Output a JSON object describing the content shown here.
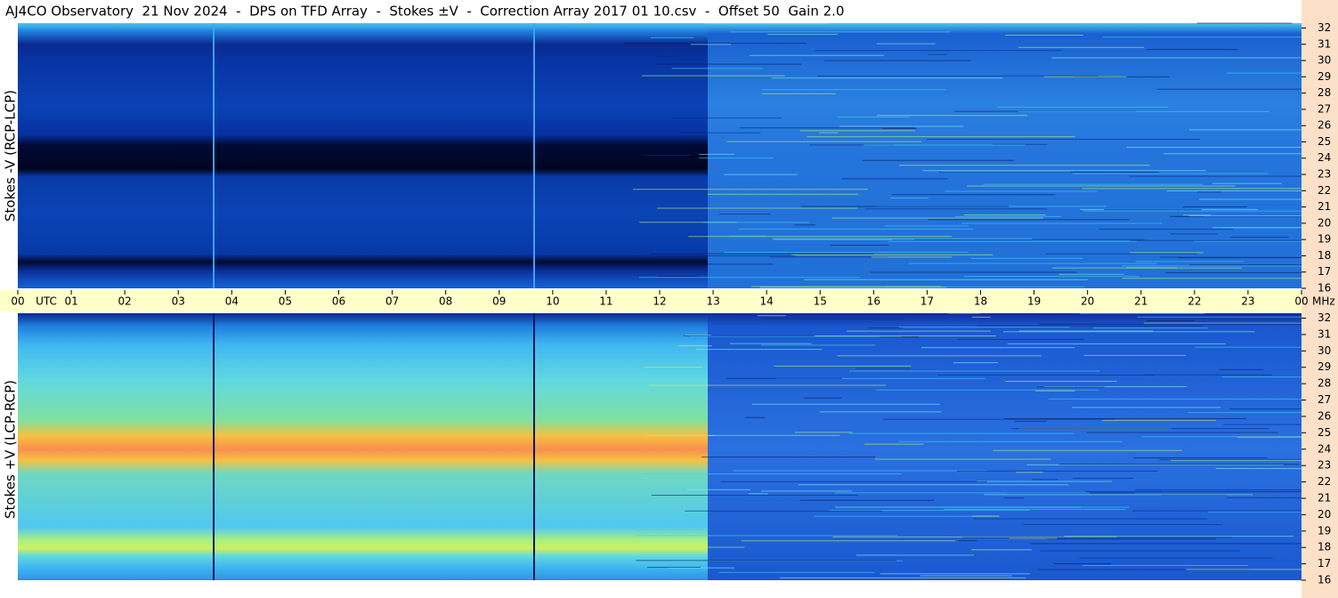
{
  "chart_data": {
    "type": "spectrogram",
    "title": "AJ4CO Observatory  21 Nov 2024  -  DPS on TFD Array  -  Stokes ±V  -  Correction Array 2017 01 10.csv  -  Offset 50  Gain 2.0",
    "xlabel": "UTC",
    "ylabel": "MHz",
    "panels": [
      {
        "ylabel": "Stokes -V (RCP-LCP)"
      },
      {
        "ylabel": "Stokes +V (LCP-RCP)"
      }
    ],
    "xlim": [
      0,
      24
    ],
    "xticks": [
      {
        "value": 0,
        "label": "00"
      },
      {
        "value": 1,
        "label": "01"
      },
      {
        "value": 2,
        "label": "02"
      },
      {
        "value": 3,
        "label": "03"
      },
      {
        "value": 4,
        "label": "04"
      },
      {
        "value": 5,
        "label": "05"
      },
      {
        "value": 6,
        "label": "06"
      },
      {
        "value": 7,
        "label": "07"
      },
      {
        "value": 8,
        "label": "08"
      },
      {
        "value": 9,
        "label": "09"
      },
      10,
      11,
      12,
      13,
      14,
      15,
      16,
      17,
      18,
      19,
      20,
      21,
      22,
      23,
      {
        "value": 24,
        "label": "00"
      }
    ],
    "ylim": [
      16,
      32.3
    ],
    "yticks": [
      16,
      17,
      18,
      19,
      20,
      21,
      22,
      23,
      24,
      25,
      26,
      27,
      28,
      29,
      30,
      31,
      32
    ]
  }
}
